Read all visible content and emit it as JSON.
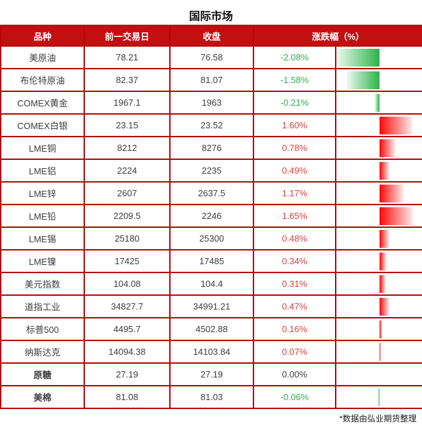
{
  "title": "国际市场",
  "footer_note": "*数据由弘业期货整理",
  "colors": {
    "header_bg": "#c21010",
    "border": "#b50808",
    "body_text": "#3d3d3d",
    "up_text": "#e04040",
    "down_text": "#2cb150",
    "bar_up": "#ff0707",
    "bar_down": "#2cb24a"
  },
  "table": {
    "headers": {
      "product": "品种",
      "prev": "前一交易日",
      "close": "收盘",
      "change": "涨跌幅（%）"
    },
    "max_abs_pct": 2.08,
    "rows": [
      {
        "name": "美原油",
        "prev": "78.21",
        "close": "76.58",
        "pct": "-2.08%",
        "pct_value": -2.08,
        "bold": false
      },
      {
        "name": "布伦特原油",
        "prev": "82.37",
        "close": "81.07",
        "pct": "-1.58%",
        "pct_value": -1.58,
        "bold": false
      },
      {
        "name": "COMEX黄金",
        "prev": "1967.1",
        "close": "1963",
        "pct": "-0.21%",
        "pct_value": -0.21,
        "bold": false
      },
      {
        "name": "COMEX白银",
        "prev": "23.15",
        "close": "23.52",
        "pct": "1.60%",
        "pct_value": 1.6,
        "bold": false
      },
      {
        "name": "LME铜",
        "prev": "8212",
        "close": "8276",
        "pct": "0.78%",
        "pct_value": 0.78,
        "bold": false
      },
      {
        "name": "LME铝",
        "prev": "2224",
        "close": "2235",
        "pct": "0.49%",
        "pct_value": 0.49,
        "bold": false
      },
      {
        "name": "LME锌",
        "prev": "2607",
        "close": "2637.5",
        "pct": "1.17%",
        "pct_value": 1.17,
        "bold": false
      },
      {
        "name": "LME铅",
        "prev": "2209.5",
        "close": "2246",
        "pct": "1.65%",
        "pct_value": 1.65,
        "bold": false
      },
      {
        "name": "LME锡",
        "prev": "25180",
        "close": "25300",
        "pct": "0.48%",
        "pct_value": 0.48,
        "bold": false
      },
      {
        "name": "LME镍",
        "prev": "17425",
        "close": "17485",
        "pct": "0.34%",
        "pct_value": 0.34,
        "bold": false
      },
      {
        "name": "美元指数",
        "prev": "104.08",
        "close": "104.4",
        "pct": "0.31%",
        "pct_value": 0.31,
        "bold": false
      },
      {
        "name": "道指工业",
        "prev": "34827.7",
        "close": "34991.21",
        "pct": "0.47%",
        "pct_value": 0.47,
        "bold": false
      },
      {
        "name": "标普500",
        "prev": "4495.7",
        "close": "4502.88",
        "pct": "0.16%",
        "pct_value": 0.16,
        "bold": false
      },
      {
        "name": "纳斯达克",
        "prev": "14094.38",
        "close": "14103.84",
        "pct": "0.07%",
        "pct_value": 0.07,
        "bold": false
      },
      {
        "name": "原糖",
        "prev": "27.19",
        "close": "27.19",
        "pct": "0.00%",
        "pct_value": 0.0,
        "bold": true
      },
      {
        "name": "美棉",
        "prev": "81.08",
        "close": "81.03",
        "pct": "-0.06%",
        "pct_value": -0.06,
        "bold": true
      }
    ]
  },
  "chart_data": {
    "type": "table",
    "title": "国际市场",
    "columns": [
      "品种",
      "前一交易日",
      "收盘",
      "涨跌幅（%）"
    ],
    "rows": [
      [
        "美原油",
        78.21,
        76.58,
        -2.08
      ],
      [
        "布伦特原油",
        82.37,
        81.07,
        -1.58
      ],
      [
        "COMEX黄金",
        1967.1,
        1963,
        -0.21
      ],
      [
        "COMEX白银",
        23.15,
        23.52,
        1.6
      ],
      [
        "LME铜",
        8212,
        8276,
        0.78
      ],
      [
        "LME铝",
        2224,
        2235,
        0.49
      ],
      [
        "LME锌",
        2607,
        2637.5,
        1.17
      ],
      [
        "LME铅",
        2209.5,
        2246,
        1.65
      ],
      [
        "LME锡",
        25180,
        25300,
        0.48
      ],
      [
        "LME镍",
        17425,
        17485,
        0.34
      ],
      [
        "美元指数",
        104.08,
        104.4,
        0.31
      ],
      [
        "道指工业",
        34827.7,
        34991.21,
        0.47
      ],
      [
        "标普500",
        4495.7,
        4502.88,
        0.16
      ],
      [
        "纳斯达克",
        14094.38,
        14103.84,
        0.07
      ],
      [
        "原糖",
        27.19,
        27.19,
        0.0
      ],
      [
        "美棉",
        81.08,
        81.03,
        -0.06
      ]
    ],
    "bar_column": "涨跌幅（%）",
    "bar_axis_range": [
      -2.08,
      2.08
    ],
    "bar_style": "diverging horizontal data-bars, red gradient = positive (right), green gradient = negative (left), zero axis at column center",
    "annotations": [
      "*数据由弘业期货整理"
    ]
  }
}
